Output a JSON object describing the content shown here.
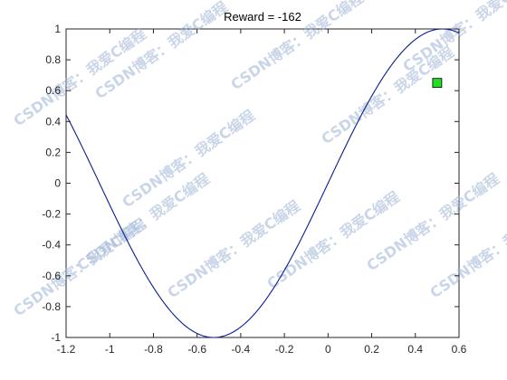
{
  "chart_data": {
    "type": "line",
    "title": "Reward = -162",
    "xlabel": "",
    "ylabel": "",
    "xlim": [
      -1.2,
      0.6
    ],
    "ylim": [
      -1,
      1
    ],
    "xticks": [
      -1.2,
      -1,
      -0.8,
      -0.6,
      -0.4,
      -0.2,
      0,
      0.2,
      0.4,
      0.6
    ],
    "xtick_labels": [
      "-1.2",
      "-1",
      "-0.8",
      "-0.6",
      "-0.4",
      "-0.2",
      "0",
      "0.2",
      "0.4",
      "0.6"
    ],
    "yticks": [
      -1,
      -0.8,
      -0.6,
      -0.4,
      -0.2,
      0,
      0.2,
      0.4,
      0.6,
      0.8,
      1
    ],
    "ytick_labels": [
      "-1",
      "-0.8",
      "-0.6",
      "-0.4",
      "-0.2",
      "0",
      "0.2",
      "0.4",
      "0.6",
      "0.8",
      "1"
    ],
    "grid": false,
    "series": [
      {
        "function": "y = sin(3x)",
        "color": "#0b1e8f",
        "x": [
          -1.2,
          -1.1,
          -1.0,
          -0.95,
          -0.9,
          -0.8,
          -0.7,
          -0.6,
          -0.524,
          -0.5,
          -0.4,
          -0.3,
          -0.2,
          -0.1,
          0,
          0.1,
          0.2,
          0.3,
          0.4,
          0.5,
          0.524,
          0.6
        ],
        "y": [
          0.443,
          0.158,
          -0.141,
          -0.282,
          -0.427,
          -0.675,
          -0.863,
          -0.974,
          -1.0,
          -0.997,
          -0.932,
          -0.783,
          -0.565,
          -0.296,
          0,
          0.296,
          0.565,
          0.783,
          0.932,
          0.997,
          1.0,
          0.974
        ]
      }
    ],
    "markers": [
      {
        "shape": "square",
        "x": 0.5,
        "y": 0.65,
        "color": "#22dd22",
        "edge_color": "#000000"
      }
    ]
  },
  "watermark": {
    "text": "CSDN博客：我爱C编程",
    "color": "#9fb6d6"
  }
}
